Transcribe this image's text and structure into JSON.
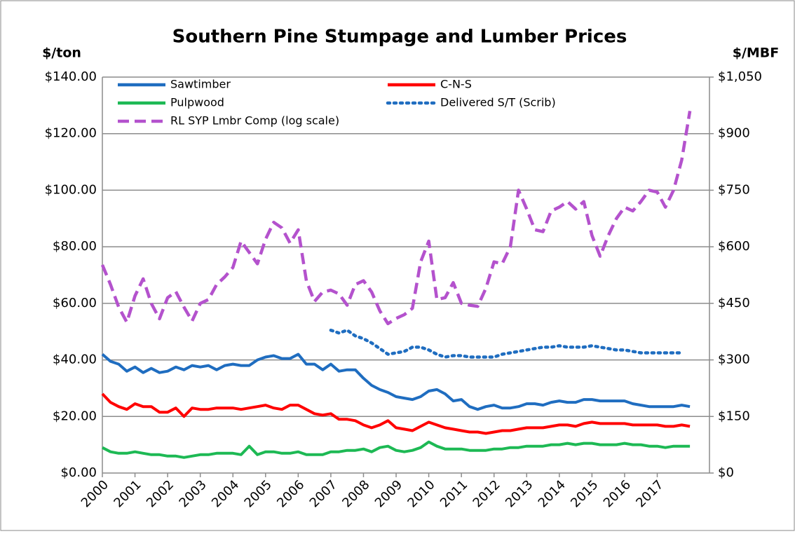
{
  "chart_data": {
    "type": "line",
    "title": "Southern Pine Stumpage and Lumber Prices",
    "ylabel": "$/ton",
    "y2label": "$/MBF",
    "x": [
      2000,
      2000.25,
      2000.5,
      2000.75,
      2001,
      2001.25,
      2001.5,
      2001.75,
      2002,
      2002.25,
      2002.5,
      2002.75,
      2003,
      2003.25,
      2003.5,
      2003.75,
      2004,
      2004.25,
      2004.5,
      2004.75,
      2005,
      2005.25,
      2005.5,
      2005.75,
      2006,
      2006.25,
      2006.5,
      2006.75,
      2007,
      2007.25,
      2007.5,
      2007.75,
      2008,
      2008.25,
      2008.5,
      2008.75,
      2009,
      2009.25,
      2009.5,
      2009.75,
      2010,
      2010.25,
      2010.5,
      2010.75,
      2011,
      2011.25,
      2011.5,
      2011.75,
      2012,
      2012.25,
      2012.5,
      2012.75,
      2013,
      2013.25,
      2013.5,
      2013.75,
      2014,
      2014.25,
      2014.5,
      2014.75,
      2015,
      2015.25,
      2015.5,
      2015.75,
      2016,
      2016.25,
      2016.5,
      2016.75,
      2017,
      2017.25,
      2017.5,
      2017.75,
      2018
    ],
    "xlim": [
      2000,
      2018.6
    ],
    "xticks": [
      2000,
      2001,
      2002,
      2003,
      2004,
      2005,
      2006,
      2007,
      2008,
      2009,
      2010,
      2011,
      2012,
      2013,
      2014,
      2015,
      2016,
      2017
    ],
    "ylim": [
      0,
      140
    ],
    "yticks": [
      {
        "value": 0,
        "label": "$0.00"
      },
      {
        "value": 20,
        "label": "$20.00"
      },
      {
        "value": 40,
        "label": "$40.00"
      },
      {
        "value": 60,
        "label": "$60.00"
      },
      {
        "value": 80,
        "label": "$80.00"
      },
      {
        "value": 100,
        "label": "$100.00"
      },
      {
        "value": 120,
        "label": "$120.00"
      },
      {
        "value": 140,
        "label": "$140.00"
      }
    ],
    "y2lim": [
      0,
      1050
    ],
    "y2ticks": [
      {
        "value": 0,
        "label": "$0"
      },
      {
        "value": 150,
        "label": "$150"
      },
      {
        "value": 300,
        "label": "$300"
      },
      {
        "value": 450,
        "label": "$450"
      },
      {
        "value": 600,
        "label": "$600"
      },
      {
        "value": 750,
        "label": "$750"
      },
      {
        "value": 900,
        "label": "$900"
      },
      {
        "value": 1050,
        "label": "$1,050"
      }
    ],
    "grid": true,
    "legend": "top",
    "series": [
      {
        "name": "Sawtimber",
        "color": "#1F6DC0",
        "linestyle": "solid",
        "values": [
          42,
          39.5,
          38.5,
          36,
          37.5,
          35.5,
          37,
          35.5,
          36,
          37.5,
          36.5,
          38,
          37.5,
          38,
          36.5,
          38,
          38.5,
          38,
          38,
          40,
          41,
          41.5,
          40.5,
          40.5,
          42,
          38.5,
          38.5,
          36.5,
          38.5,
          36,
          36.5,
          36.5,
          33.5,
          31,
          29.5,
          28.5,
          27,
          26.5,
          26,
          27,
          29,
          29.5,
          28,
          25.5,
          26,
          23.5,
          22.5,
          23.5,
          24,
          23,
          23,
          23.5,
          24.5,
          24.5,
          24,
          25,
          25.5,
          25,
          25,
          26,
          26,
          25.5,
          25.5,
          25.5,
          25.5,
          24.5,
          24,
          23.5,
          23.5,
          23.5,
          23.5,
          24,
          23.5
        ]
      },
      {
        "name": "C-N-S",
        "color": "#FF0000",
        "linestyle": "solid",
        "values": [
          28,
          25,
          23.5,
          22.5,
          24.5,
          23.5,
          23.5,
          21.5,
          21.5,
          23,
          20,
          23,
          22.5,
          22.5,
          23,
          23,
          23,
          22.5,
          23,
          23.5,
          24,
          23,
          22.5,
          24,
          24,
          22.5,
          21,
          20.5,
          21,
          19,
          19,
          18.5,
          17,
          16,
          17,
          18.5,
          16,
          15.5,
          15,
          16.5,
          18,
          17,
          16,
          15.5,
          15,
          14.5,
          14.5,
          14,
          14.5,
          15,
          15,
          15.5,
          16,
          16,
          16,
          16.5,
          17,
          17,
          16.5,
          17.5,
          18,
          17.5,
          17.5,
          17.5,
          17.5,
          17,
          17,
          17,
          17,
          16.5,
          16.5,
          17,
          16.5
        ]
      },
      {
        "name": "Pulpwood",
        "color": "#1DB954",
        "linestyle": "solid",
        "values": [
          9,
          7.5,
          7,
          7,
          7.5,
          7,
          6.5,
          6.5,
          6,
          6,
          5.5,
          6,
          6.5,
          6.5,
          7,
          7,
          7,
          6.5,
          9.5,
          6.5,
          7.5,
          7.5,
          7,
          7,
          7.5,
          6.5,
          6.5,
          6.5,
          7.5,
          7.5,
          8,
          8,
          8.5,
          7.5,
          9,
          9.5,
          8,
          7.5,
          8,
          9,
          11,
          9.5,
          8.5,
          8.5,
          8.5,
          8,
          8,
          8,
          8.5,
          8.5,
          9,
          9,
          9.5,
          9.5,
          9.5,
          10,
          10,
          10.5,
          10,
          10.5,
          10.5,
          10,
          10,
          10,
          10.5,
          10,
          10,
          9.5,
          9.5,
          9,
          9.5,
          9.5,
          9.5
        ]
      },
      {
        "name": "Delivered S/T (Scrib)",
        "color": "#1F6DC0",
        "linestyle": "dotted",
        "values": [
          null,
          null,
          null,
          null,
          null,
          null,
          null,
          null,
          null,
          null,
          null,
          null,
          null,
          null,
          null,
          null,
          null,
          null,
          null,
          null,
          null,
          null,
          null,
          null,
          null,
          null,
          null,
          null,
          50.5,
          49.5,
          50.5,
          48.5,
          47.5,
          46,
          44,
          42,
          42.5,
          43,
          44.5,
          44.5,
          43.5,
          42,
          41,
          41.5,
          41.5,
          41,
          41,
          41,
          41,
          42,
          42.5,
          43,
          43.5,
          44,
          44.5,
          44.5,
          45,
          44.5,
          44.5,
          44.5,
          45,
          44.5,
          44,
          43.5,
          43.5,
          43,
          42.5,
          42.5,
          42.5,
          42.5,
          42.5,
          42.5,
          null
        ]
      },
      {
        "name": "RL SYP Lmbr Comp (log scale)",
        "color": "#B452CD",
        "linestyle": "dashed",
        "axis": "y2",
        "values": [
          552,
          500,
          440,
          400,
          470,
          515,
          450,
          409,
          465,
          481,
          440,
          403,
          450,
          460,
          500,
          520,
          545,
          615,
          585,
          555,
          620,
          665,
          650,
          610,
          645,
          510,
          455,
          480,
          485,
          475,
          445,
          500,
          510,
          480,
          430,
          396,
          410,
          420,
          437,
          560,
          615,
          460,
          465,
          505,
          450,
          445,
          442,
          490,
          560,
          555,
          600,
          750,
          700,
          645,
          640,
          695,
          705,
          720,
          700,
          720,
          630,
          575,
          630,
          675,
          705,
          695,
          720,
          750,
          745,
          705,
          750,
          830,
          960
        ]
      }
    ]
  }
}
